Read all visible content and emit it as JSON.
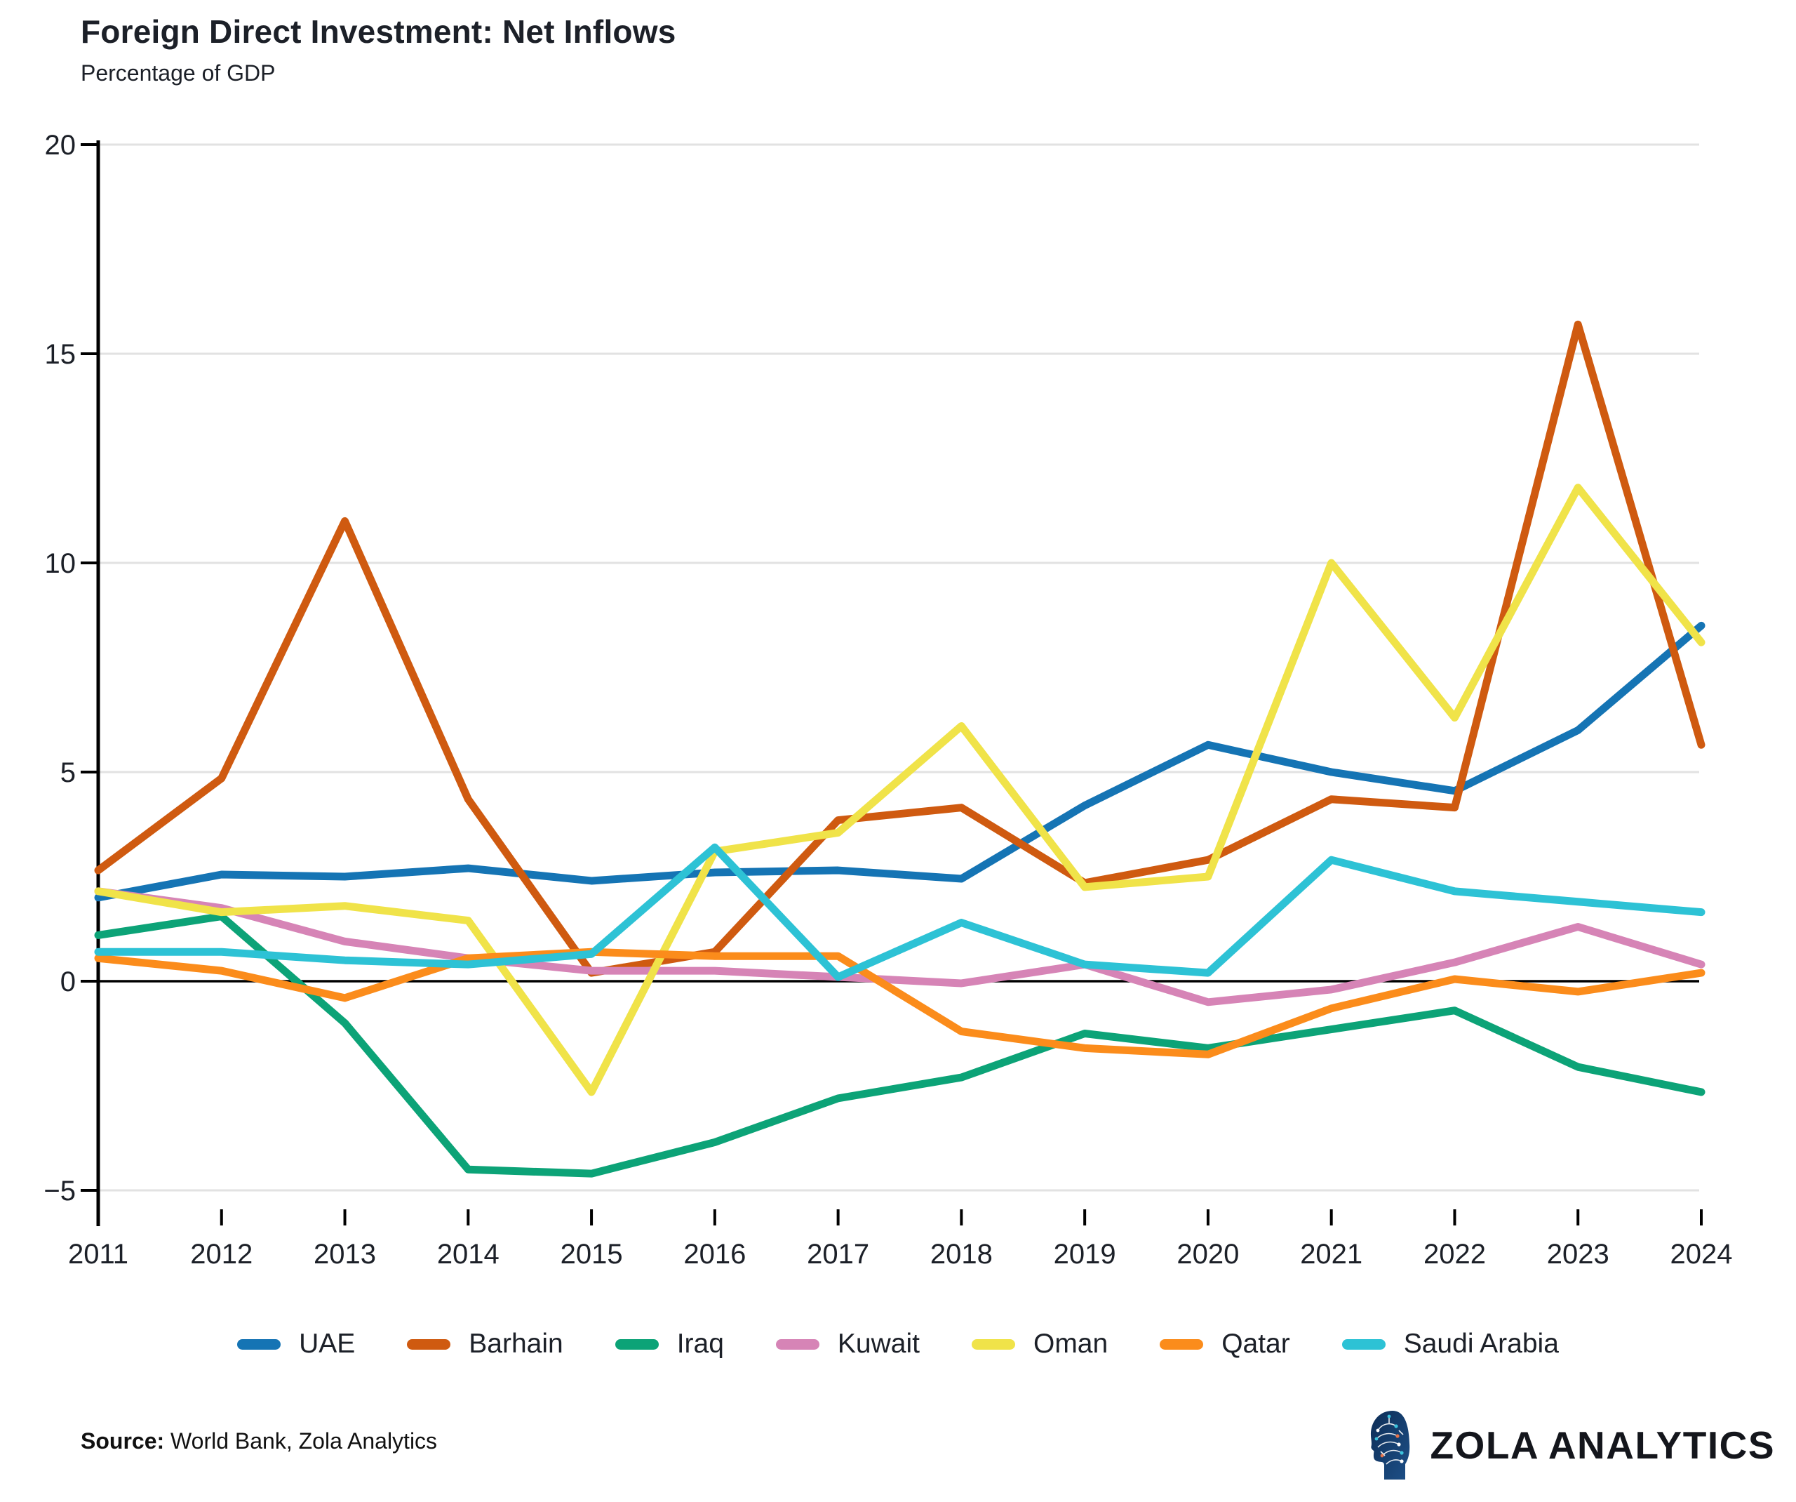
{
  "header": {
    "title": "Foreign Direct Investment: Net Inflows",
    "subtitle": "Percentage of GDP"
  },
  "chart_data": {
    "type": "line",
    "x": [
      2011,
      2012,
      2013,
      2014,
      2015,
      2016,
      2017,
      2018,
      2019,
      2020,
      2021,
      2022,
      2023,
      2024
    ],
    "x_tick_labels": [
      "2011",
      "2012",
      "2013",
      "2014",
      "2015",
      "2016",
      "2017",
      "2018",
      "2019",
      "2020",
      "2021",
      "2022",
      "2023",
      "2024"
    ],
    "series": [
      {
        "name": "UAE",
        "color": "#1574b4",
        "values": [
          2.0,
          2.55,
          2.5,
          2.7,
          2.4,
          2.6,
          2.65,
          2.45,
          4.2,
          5.65,
          5.0,
          4.55,
          6.0,
          8.5
        ]
      },
      {
        "name": "Barhain",
        "color": "#cf5a10",
        "values": [
          2.65,
          4.85,
          11.0,
          4.35,
          0.2,
          0.7,
          3.85,
          4.15,
          2.35,
          2.9,
          4.35,
          4.15,
          15.7,
          5.65
        ]
      },
      {
        "name": "Iraq",
        "color": "#0ca377",
        "values": [
          1.1,
          1.55,
          -1.0,
          -4.5,
          -4.6,
          -3.85,
          -2.8,
          -2.3,
          -1.25,
          -1.6,
          -1.15,
          -0.7,
          -2.05,
          -2.65
        ]
      },
      {
        "name": "Kuwait",
        "color": "#d684b6",
        "values": [
          2.15,
          1.75,
          0.95,
          0.55,
          0.25,
          0.25,
          0.1,
          -0.05,
          0.4,
          -0.5,
          -0.2,
          0.45,
          1.3,
          0.4
        ]
      },
      {
        "name": "Oman",
        "color": "#f0e349",
        "values": [
          2.15,
          1.65,
          1.8,
          1.45,
          -2.65,
          3.1,
          3.55,
          6.1,
          2.25,
          2.5,
          10.0,
          6.3,
          11.8,
          8.1
        ]
      },
      {
        "name": "Qatar",
        "color": "#fb8c1b",
        "values": [
          0.55,
          0.25,
          -0.4,
          0.55,
          0.7,
          0.6,
          0.6,
          -1.2,
          -1.6,
          -1.75,
          -0.65,
          0.05,
          -0.25,
          0.2
        ]
      },
      {
        "name": "Saudi Arabia",
        "color": "#2dc2d5",
        "values": [
          0.7,
          0.7,
          0.5,
          0.4,
          0.65,
          3.2,
          0.1,
          1.4,
          0.4,
          0.2,
          2.9,
          2.15,
          1.9,
          1.65
        ]
      }
    ],
    "ylim": [
      -5,
      20
    ],
    "yticks": [
      20,
      15,
      10,
      5,
      0,
      -5
    ],
    "ytick_labels": [
      "20",
      "15",
      "10",
      "5",
      "0",
      "−5"
    ],
    "grid": "horizontal",
    "zero_line": true,
    "legend_position": "bottom",
    "colors": {
      "grid": "#e2e2e2",
      "zero_line": "#000000",
      "axis": "#000000",
      "tick_text": "#1c2028"
    }
  },
  "footer": {
    "source_label": "Source:",
    "source_text": " World Bank, Zola Analytics",
    "brand_name": "ZOLA ANALYTICS"
  }
}
